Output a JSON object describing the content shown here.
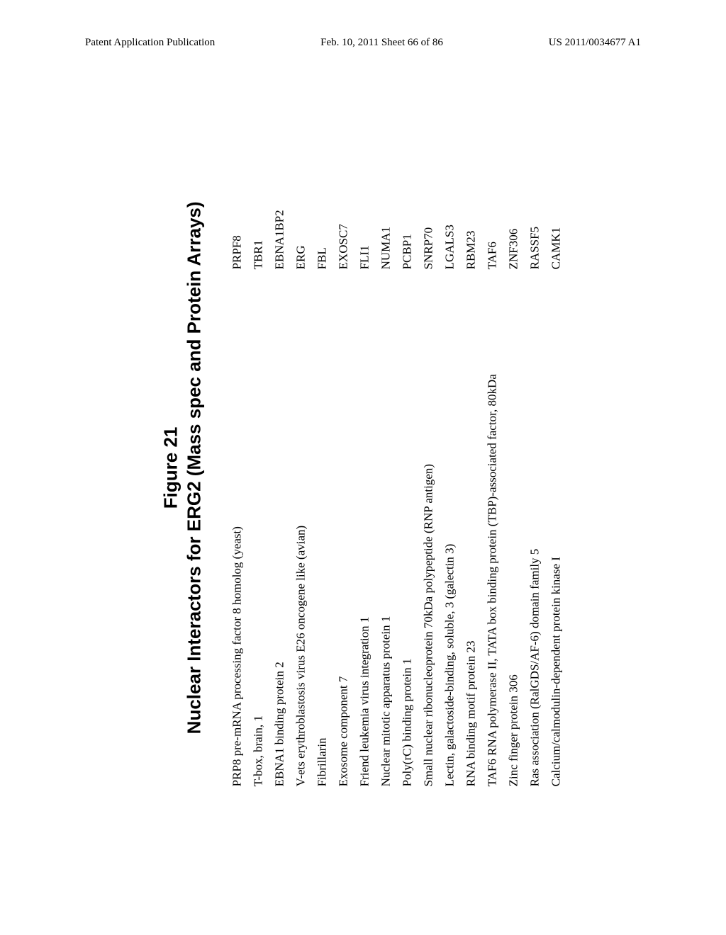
{
  "header": {
    "left": "Patent Application Publication",
    "center": "Feb. 10, 2011  Sheet 66 of 86",
    "right": "US 2011/0034677 A1"
  },
  "figure": {
    "title_line1": "Figure 21",
    "title_line2": "Nuclear Interactors for ERG2 (Mass spec and Protein Arrays)"
  },
  "table": {
    "rows": [
      {
        "desc": "PRP8 pre-mRNA processing factor 8 homolog (yeast)",
        "sym": "PRPF8"
      },
      {
        "desc": "T-box, brain, 1",
        "sym": "TBR1"
      },
      {
        "desc": "EBNA1 binding protein 2",
        "sym": "EBNA1BP2"
      },
      {
        "desc": "V-ets erythroblastosis virus E26 oncogene like (avian)",
        "sym": "ERG"
      },
      {
        "desc": "Fibrillarin",
        "sym": "FBL"
      },
      {
        "desc": "Exosome component 7",
        "sym": "EXOSC7"
      },
      {
        "desc": "Friend leukemia virus integration 1",
        "sym": "FLI1"
      },
      {
        "desc": "Nuclear mitotic apparatus protein 1",
        "sym": "NUMA1"
      },
      {
        "desc": "Poly(rC) binding protein 1",
        "sym": "PCBP1"
      },
      {
        "desc": "Small nuclear ribonucleoprotein 70kDa polypeptide (RNP antigen)",
        "sym": "SNRP70"
      },
      {
        "desc": "Lectin, galactoside-binding, soluble, 3 (galectin 3)",
        "sym": "LGALS3"
      },
      {
        "desc": "RNA binding motif protein 23",
        "sym": "RBM23"
      },
      {
        "desc": "TAF6 RNA polymerase II, TATA box binding protein (TBP)-associated factor, 80kDa",
        "sym": "TAF6"
      },
      {
        "desc": "Zinc finger protein 306",
        "sym": "ZNF306"
      },
      {
        "desc": "Ras association (RalGDS/AF-6) domain family 5",
        "sym": "RASSF5"
      },
      {
        "desc": "Calcium/calmodulin-dependent protein kinase I",
        "sym": "CAMK1"
      }
    ]
  }
}
